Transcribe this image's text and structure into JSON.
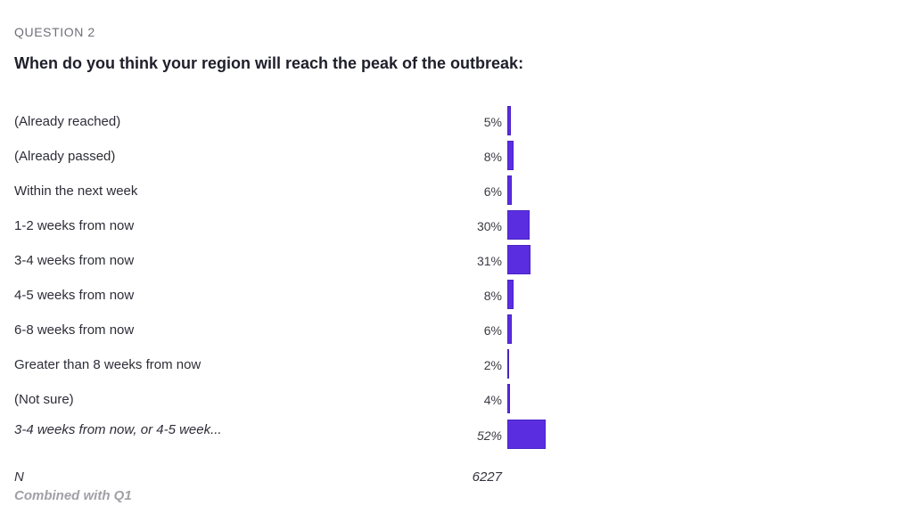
{
  "question": {
    "label": "QUESTION 2",
    "title": "When do you think your region will reach the peak of the outbreak:"
  },
  "chart_data": {
    "type": "bar",
    "orientation": "horizontal",
    "categories": [
      "(Already reached)",
      "(Already passed)",
      "Within the next week",
      "1-2 weeks from now",
      "3-4 weeks from now",
      "4-5 weeks from now",
      "6-8 weeks from now",
      "Greater than 8 weeks from now",
      "(Not sure)",
      "3-4 weeks from now, or 4-5 week..."
    ],
    "values": [
      5,
      8,
      6,
      30,
      31,
      8,
      6,
      2,
      4,
      52
    ],
    "value_labels": [
      "5%",
      "8%",
      "6%",
      "30%",
      "31%",
      "8%",
      "6%",
      "2%",
      "4%",
      "52%"
    ],
    "italic_rows": [
      9
    ],
    "unit": "%",
    "bar_color": "#5a2ee0"
  },
  "summary": {
    "n_label": "N",
    "n_value": "6227",
    "footnote": "Combined with Q1"
  }
}
